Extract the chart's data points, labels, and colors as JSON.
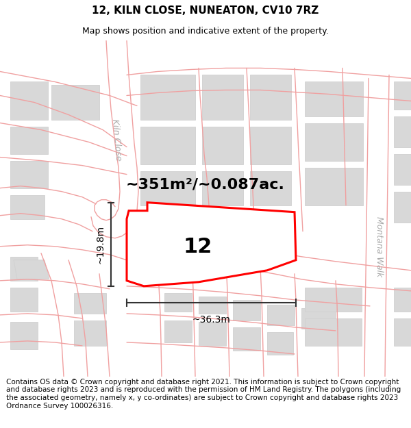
{
  "title": "12, KILN CLOSE, NUNEATON, CV10 7RZ",
  "subtitle": "Map shows position and indicative extent of the property.",
  "area_text": "~351m²/~0.087ac.",
  "width_label": "~36.3m",
  "height_label": "~19.8m",
  "plot_number": "12",
  "bg_color": "#ffffff",
  "road_color": "#f0a0a0",
  "road_fill": "#ffffff",
  "building_color": "#d8d8d8",
  "building_outline": "#d0d0d0",
  "dim_color": "#333333",
  "label_road_color": "#b0b0b0",
  "footer_text": "Contains OS data © Crown copyright and database right 2021. This information is subject to Crown copyright and database rights 2023 and is reproduced with the permission of HM Land Registry. The polygons (including the associated geometry, namely x, y co-ordinates) are subject to Crown copyright and database rights 2023 Ordnance Survey 100026316.",
  "title_fontsize": 11,
  "subtitle_fontsize": 9,
  "area_fontsize": 16,
  "plot_num_fontsize": 22,
  "dim_fontsize": 10,
  "footer_fontsize": 7.5,
  "kiln_close_label": "Kiln Close",
  "montana_walk_label": "Montana Walk",
  "road_label_color": "#aaaaaa",
  "road_label_fontsize": 9
}
